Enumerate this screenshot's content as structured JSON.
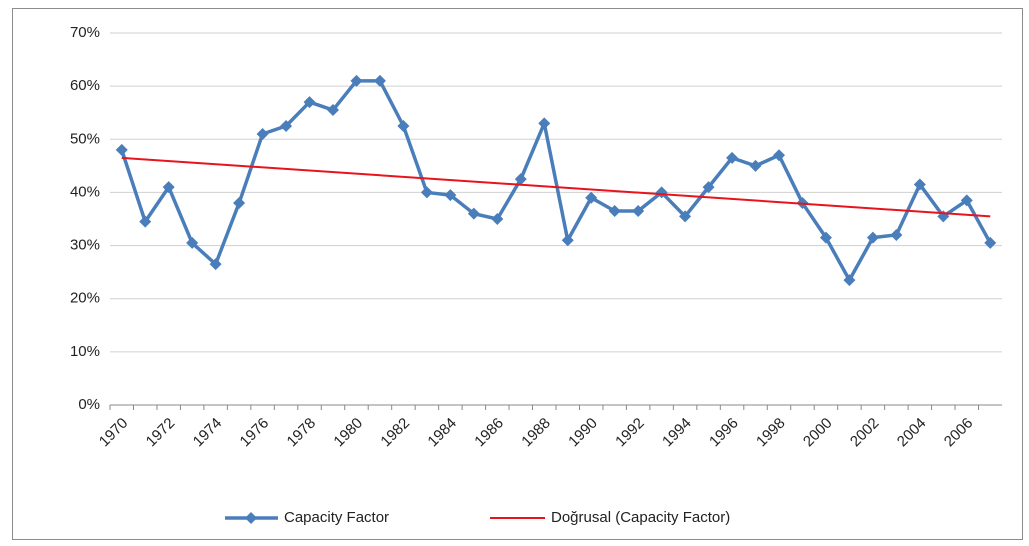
{
  "chart_data": {
    "type": "line",
    "categories": [
      "1970",
      null,
      "1972",
      null,
      "1974",
      null,
      "1976",
      null,
      "1978",
      null,
      "1980",
      null,
      "1982",
      null,
      "1984",
      null,
      "1986",
      null,
      "1988",
      null,
      "1990",
      null,
      "1992",
      null,
      "1994",
      null,
      "1996",
      null,
      "1998",
      null,
      "2000",
      null,
      "2002",
      null,
      "2004",
      null,
      "2006",
      null
    ],
    "series": [
      {
        "name": "Capacity Factor",
        "color": "#4a7ebb",
        "values": [
          48,
          34.5,
          41,
          30.5,
          26.5,
          38,
          51,
          52.5,
          57,
          55.5,
          61,
          61,
          52.5,
          40,
          39.5,
          36,
          35,
          42.5,
          53,
          31,
          39,
          36.5,
          36.5,
          40,
          35.5,
          41,
          46.5,
          45,
          47,
          38,
          31.5,
          23.5,
          31.5,
          32,
          41.5,
          35.5,
          38.5,
          30.5
        ]
      }
    ],
    "trendline": {
      "name": "Doğrusal (Capacity Factor)",
      "color": "#e8141c",
      "start": 46.5,
      "end": 35.5
    },
    "ylim": [
      0,
      70
    ],
    "yticks": [
      {
        "value": 0,
        "label": "0%"
      },
      {
        "value": 10,
        "label": "10%"
      },
      {
        "value": 20,
        "label": "20%"
      },
      {
        "value": 30,
        "label": "30%"
      },
      {
        "value": 40,
        "label": "40%"
      },
      {
        "value": 50,
        "label": "50%"
      },
      {
        "value": 60,
        "label": "60%"
      },
      {
        "value": 70,
        "label": "70%"
      }
    ],
    "grid": true,
    "legend": "bottom"
  }
}
